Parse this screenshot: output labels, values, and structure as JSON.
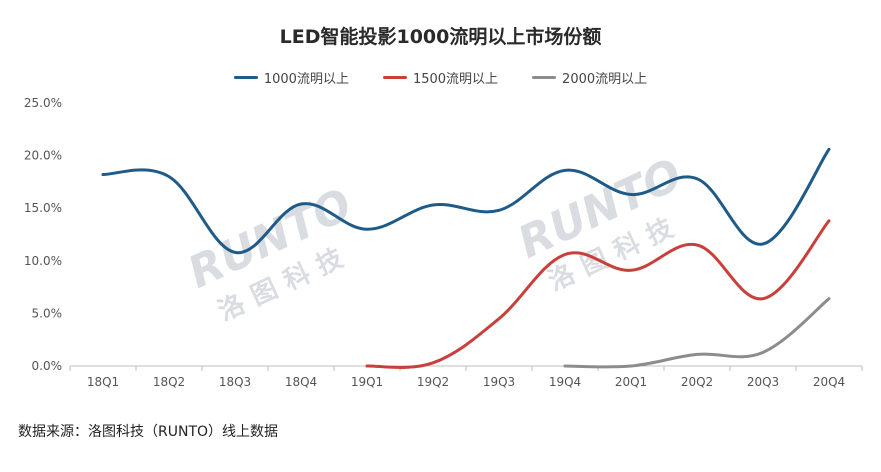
{
  "chart_data": {
    "type": "line",
    "title": "LED智能投影1000流明以上市场份额",
    "categories": [
      "18Q1",
      "18Q2",
      "18Q3",
      "18Q4",
      "19Q1",
      "19Q2",
      "19Q3",
      "19Q4",
      "20Q1",
      "20Q2",
      "20Q3",
      "20Q4"
    ],
    "series": [
      {
        "name": "1000流明以上",
        "color": "#1f5b88",
        "values": [
          18.2,
          18.0,
          10.8,
          15.4,
          13.0,
          15.3,
          14.8,
          18.6,
          16.3,
          17.8,
          11.6,
          20.6
        ]
      },
      {
        "name": "1500流明以上",
        "color": "#c9403a",
        "values": [
          null,
          null,
          null,
          null,
          0.0,
          0.3,
          4.5,
          10.6,
          9.1,
          11.5,
          6.4,
          13.8
        ]
      },
      {
        "name": "2000流明以上",
        "color": "#8c8c8c",
        "values": [
          null,
          null,
          null,
          null,
          null,
          null,
          null,
          0.0,
          0.0,
          1.1,
          1.3,
          6.4
        ]
      }
    ],
    "y_ticks": [
      "25.0%",
      "20.0%",
      "15.0%",
      "10.0%",
      "5.0%",
      "0.0%"
    ],
    "ylim": [
      0,
      25
    ],
    "legend_position": "top-center",
    "grid": false
  },
  "watermark": "RUNTO 洛图科技",
  "source_note": "数据来源：洛图科技（RUNTO）线上数据"
}
